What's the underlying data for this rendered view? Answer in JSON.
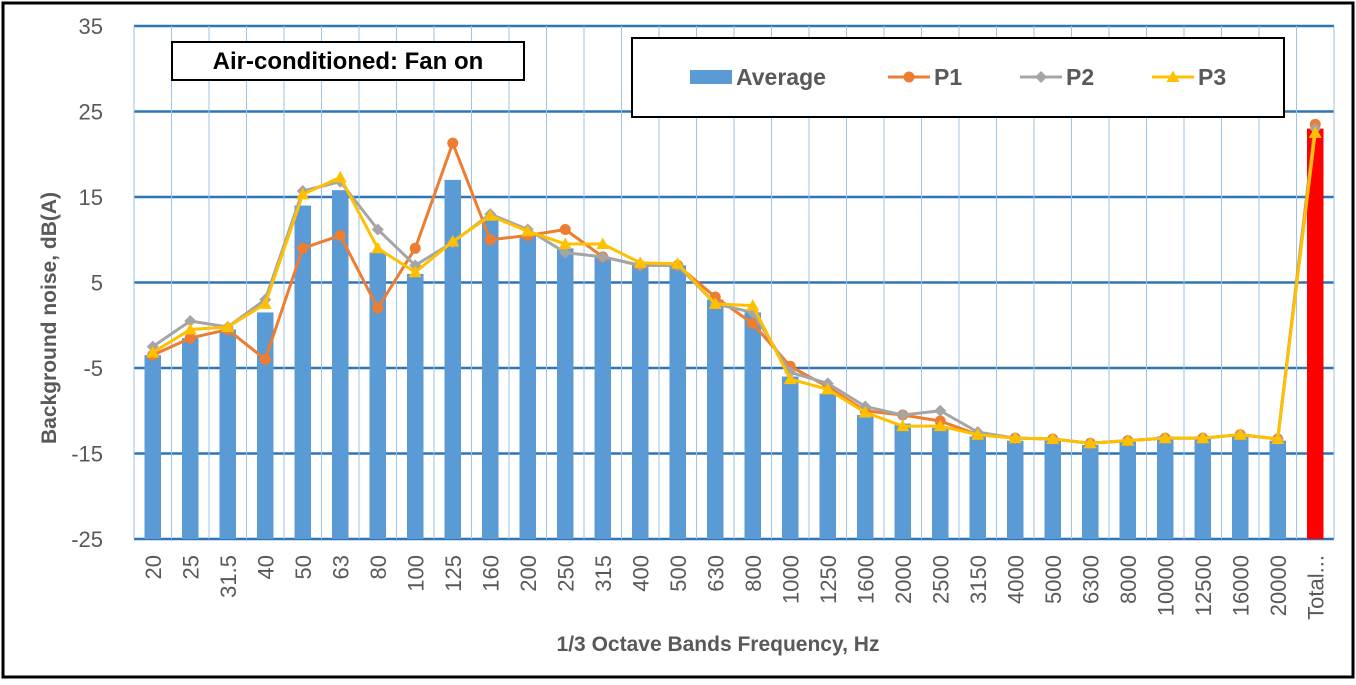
{
  "chart_data": {
    "type": "bar",
    "annotation": "Air-conditioned: Fan on",
    "xlabel": "1/3 Octave Bands Frequency, Hz",
    "ylabel": "Background noise, dB(A)",
    "ylim": [
      -25,
      35
    ],
    "yticks": [
      -25,
      -15,
      -5,
      5,
      15,
      25,
      35
    ],
    "grid": true,
    "legend_position": "top-right",
    "categories": [
      "20",
      "25",
      "31.5",
      "40",
      "50",
      "63",
      "80",
      "100",
      "125",
      "160",
      "200",
      "250",
      "315",
      "400",
      "500",
      "630",
      "800",
      "1000",
      "1250",
      "1600",
      "2000",
      "2500",
      "3150",
      "4000",
      "5000",
      "6300",
      "8000",
      "10000",
      "12500",
      "16000",
      "20000",
      "Total..."
    ],
    "series": [
      {
        "name": "Average",
        "kind": "bar",
        "color": "#5b9bd5",
        "highlight_color": "#ff0000",
        "values": [
          -3.5,
          -1.5,
          -0.5,
          1.5,
          14,
          15.8,
          8.5,
          6,
          17,
          12.5,
          10.5,
          9,
          8,
          7,
          7,
          3,
          1.5,
          -6,
          -8,
          -10.5,
          -11.5,
          -12,
          -13,
          -13.5,
          -13.5,
          -14,
          -13.5,
          -13,
          -13,
          -13,
          -13.5,
          23
        ]
      },
      {
        "name": "P1",
        "kind": "line",
        "marker": "circle",
        "color": "#ed7d31",
        "values": [
          -3.5,
          -1.5,
          -0.5,
          -4,
          9,
          10.5,
          2,
          9,
          21.3,
          10,
          10.5,
          11.2,
          8,
          7,
          7,
          3.3,
          0.2,
          -4.8,
          -7.2,
          -10,
          -10.5,
          -11.2,
          -12.8,
          -13.2,
          -13.3,
          -13.8,
          -13.5,
          -13.2,
          -13.2,
          -12.8,
          -13.3,
          23.5
        ]
      },
      {
        "name": "P2",
        "kind": "line",
        "marker": "diamond",
        "color": "#a5a5a5",
        "values": [
          -2.5,
          0.5,
          -0.2,
          3,
          15.7,
          16.8,
          11.2,
          7,
          9.7,
          13,
          11.2,
          8.5,
          8,
          7,
          7,
          2.5,
          1.5,
          -5.5,
          -6.8,
          -9.5,
          -10.5,
          -10,
          -12.5,
          -13.2,
          -13.3,
          -13.8,
          -13.5,
          -13.2,
          -13.2,
          -12.8,
          -13.3,
          23
        ]
      },
      {
        "name": "P3",
        "kind": "line",
        "marker": "triangle",
        "color": "#ffc000",
        "values": [
          -3.2,
          -0.5,
          -0.2,
          2.5,
          15.3,
          17.3,
          9,
          6.2,
          9.8,
          12.8,
          11,
          9.5,
          9.5,
          7.3,
          7.2,
          2.5,
          2.3,
          -6.3,
          -7.5,
          -10.2,
          -11.8,
          -11.8,
          -12.8,
          -13.2,
          -13.3,
          -13.8,
          -13.5,
          -13.2,
          -13.2,
          -12.8,
          -13.3,
          22.5
        ]
      }
    ]
  }
}
